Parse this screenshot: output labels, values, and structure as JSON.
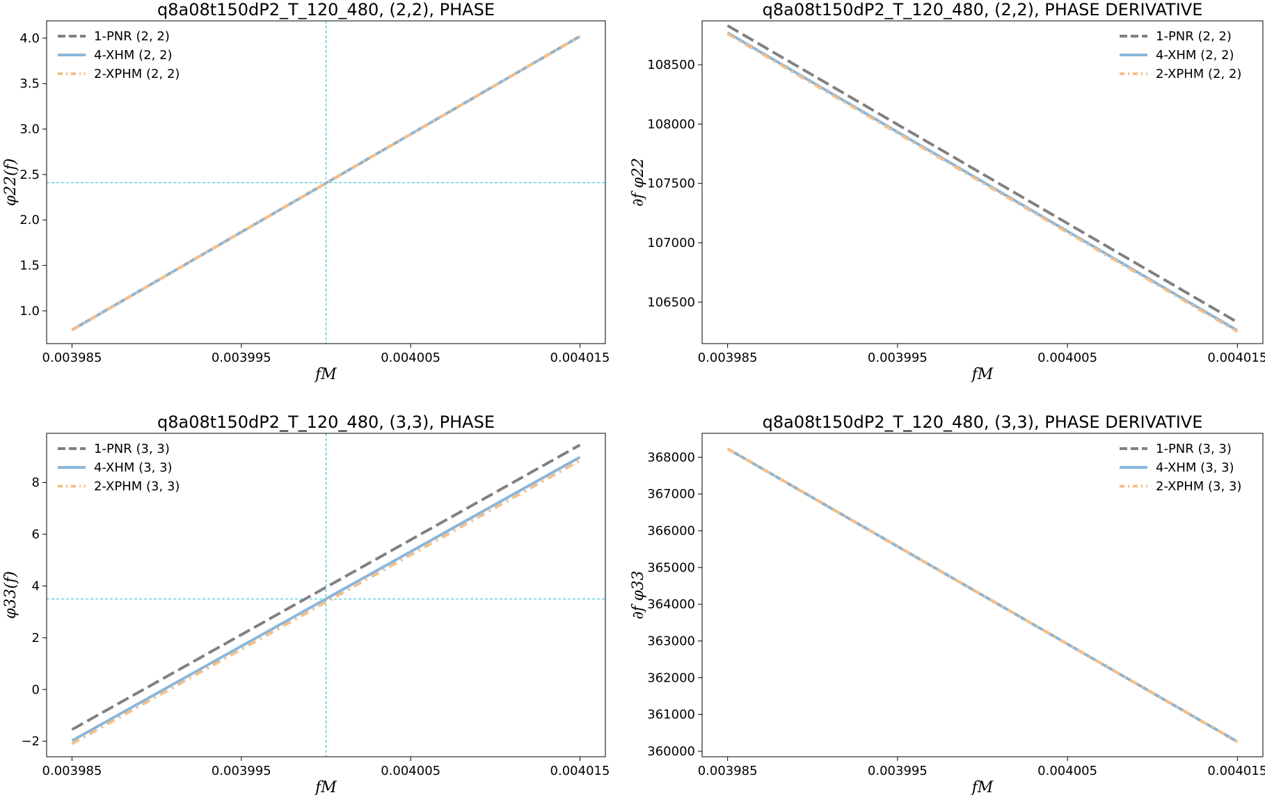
{
  "colors": {
    "pnr": "#808080",
    "xhm": "#8AB6DA",
    "xphm": "#F5BE88",
    "guide": "#17BECF"
  },
  "chart_data": [
    {
      "type": "line",
      "title": "q8a08t150dP2_T_120_480, (2,2), PHASE",
      "xlabel": "fM",
      "ylabel": "φ22(f)",
      "xlim": [
        0.0039835,
        0.0040165
      ],
      "ylim": [
        0.64,
        4.19
      ],
      "xticks": [
        0.003985,
        0.003995,
        0.004005,
        0.004015
      ],
      "xtick_labels": [
        "0.003985",
        "0.003995",
        "0.004005",
        "0.004015"
      ],
      "yticks": [
        1.0,
        1.5,
        2.0,
        2.5,
        3.0,
        3.5,
        4.0
      ],
      "ytick_labels": [
        "1.0",
        "1.5",
        "2.0",
        "2.5",
        "3.0",
        "3.5",
        "4.0"
      ],
      "legend": "top-left",
      "guides": {
        "x": 0.004,
        "y": 2.41
      },
      "series": [
        {
          "name": "1-PNR (2, 2)",
          "style": "dashed",
          "x": [
            0.003985,
            0.004015
          ],
          "y": [
            0.79,
            4.02
          ]
        },
        {
          "name": "4-XHM (2, 2)",
          "style": "solid",
          "x": [
            0.003985,
            0.004015
          ],
          "y": [
            0.79,
            4.02
          ]
        },
        {
          "name": "2-XPHM (2, 2)",
          "style": "dashdot",
          "x": [
            0.003985,
            0.004015
          ],
          "y": [
            0.79,
            4.02
          ]
        }
      ]
    },
    {
      "type": "line",
      "title": "q8a08t150dP2_T_120_480, (2,2), PHASE DERIVATIVE",
      "xlabel": "fM",
      "ylabel": "∂f φ22",
      "xlim": [
        0.0039835,
        0.0040165
      ],
      "ylim": [
        106150,
        108870
      ],
      "xticks": [
        0.003985,
        0.003995,
        0.004005,
        0.004015
      ],
      "xtick_labels": [
        "0.003985",
        "0.003995",
        "0.004005",
        "0.004015"
      ],
      "yticks": [
        106500,
        107000,
        107500,
        108000,
        108500
      ],
      "ytick_labels": [
        "106500",
        "107000",
        "107500",
        "108000",
        "108500"
      ],
      "legend": "top-right",
      "series": [
        {
          "name": "1-PNR (2, 2)",
          "style": "dashed",
          "x": [
            0.003985,
            0.004015
          ],
          "y": [
            108830,
            106330
          ]
        },
        {
          "name": "4-XHM (2, 2)",
          "style": "solid",
          "x": [
            0.003985,
            0.004015
          ],
          "y": [
            108770,
            106260
          ]
        },
        {
          "name": "2-XPHM (2, 2)",
          "style": "dashdot",
          "x": [
            0.003985,
            0.004015
          ],
          "y": [
            108760,
            106250
          ]
        }
      ]
    },
    {
      "type": "line",
      "title": "q8a08t150dP2_T_120_480, (3,3), PHASE",
      "xlabel": "fM",
      "ylabel": "φ33(f)",
      "xlim": [
        0.0039835,
        0.0040165
      ],
      "ylim": [
        -2.6,
        9.9
      ],
      "xticks": [
        0.003985,
        0.003995,
        0.004005,
        0.004015
      ],
      "xtick_labels": [
        "0.003985",
        "0.003995",
        "0.004005",
        "0.004015"
      ],
      "yticks": [
        -2,
        0,
        2,
        4,
        6,
        8
      ],
      "ytick_labels": [
        "−2",
        "0",
        "2",
        "4",
        "6",
        "8"
      ],
      "legend": "top-left",
      "guides": {
        "x": 0.004,
        "y": 3.5
      },
      "series": [
        {
          "name": "1-PNR (3, 3)",
          "style": "dashed",
          "x": [
            0.003985,
            0.004015
          ],
          "y": [
            -1.55,
            9.45
          ]
        },
        {
          "name": "4-XHM (3, 3)",
          "style": "solid",
          "x": [
            0.003985,
            0.004015
          ],
          "y": [
            -1.98,
            8.98
          ]
        },
        {
          "name": "2-XPHM (3, 3)",
          "style": "dashdot",
          "x": [
            0.003985,
            0.004015
          ],
          "y": [
            -2.1,
            8.85
          ]
        }
      ]
    },
    {
      "type": "line",
      "title": "q8a08t150dP2_T_120_480, (3,3), PHASE DERIVATIVE",
      "xlabel": "fM",
      "ylabel": "∂f φ33",
      "xlim": [
        0.0039835,
        0.0040165
      ],
      "ylim": [
        359850,
        368650
      ],
      "xticks": [
        0.003985,
        0.003995,
        0.004005,
        0.004015
      ],
      "xtick_labels": [
        "0.003985",
        "0.003995",
        "0.004005",
        "0.004015"
      ],
      "yticks": [
        360000,
        361000,
        362000,
        363000,
        364000,
        365000,
        366000,
        367000,
        368000
      ],
      "ytick_labels": [
        "360000",
        "361000",
        "362000",
        "363000",
        "364000",
        "365000",
        "366000",
        "367000",
        "368000"
      ],
      "legend": "top-right",
      "series": [
        {
          "name": "1-PNR (3, 3)",
          "style": "dashed",
          "x": [
            0.003985,
            0.004015
          ],
          "y": [
            368230,
            360260
          ]
        },
        {
          "name": "4-XHM (3, 3)",
          "style": "solid",
          "x": [
            0.003985,
            0.004015
          ],
          "y": [
            368230,
            360260
          ]
        },
        {
          "name": "2-XPHM (3, 3)",
          "style": "dashdot",
          "x": [
            0.003985,
            0.004015
          ],
          "y": [
            368230,
            360260
          ]
        }
      ]
    }
  ]
}
